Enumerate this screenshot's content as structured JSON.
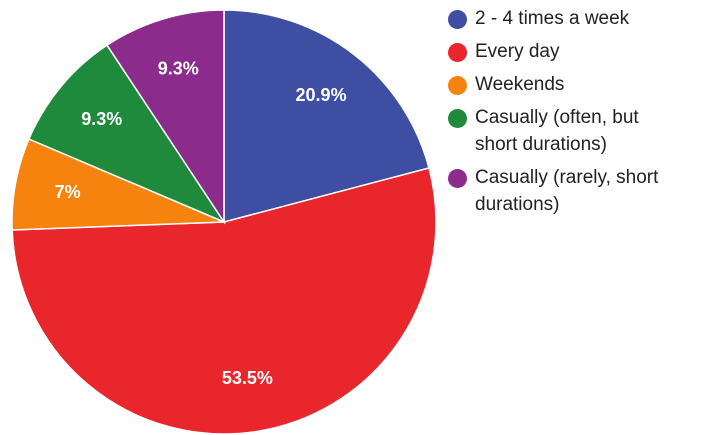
{
  "chart_data": {
    "type": "pie",
    "categories": [
      "2 - 4 times a week",
      "Every day",
      "Weekends",
      "Casually (often, but short durations)",
      "Casually (rarely, short durations)"
    ],
    "values": [
      20.9,
      53.5,
      7,
      9.3,
      9.3
    ],
    "value_labels": [
      "20.9%",
      "53.5%",
      "7%",
      "9.3%",
      "9.3%"
    ],
    "colors": [
      "#3d4ea3",
      "#e8262b",
      "#f7830f",
      "#1f8a3c",
      "#8b2b8c"
    ],
    "legend": "right"
  }
}
